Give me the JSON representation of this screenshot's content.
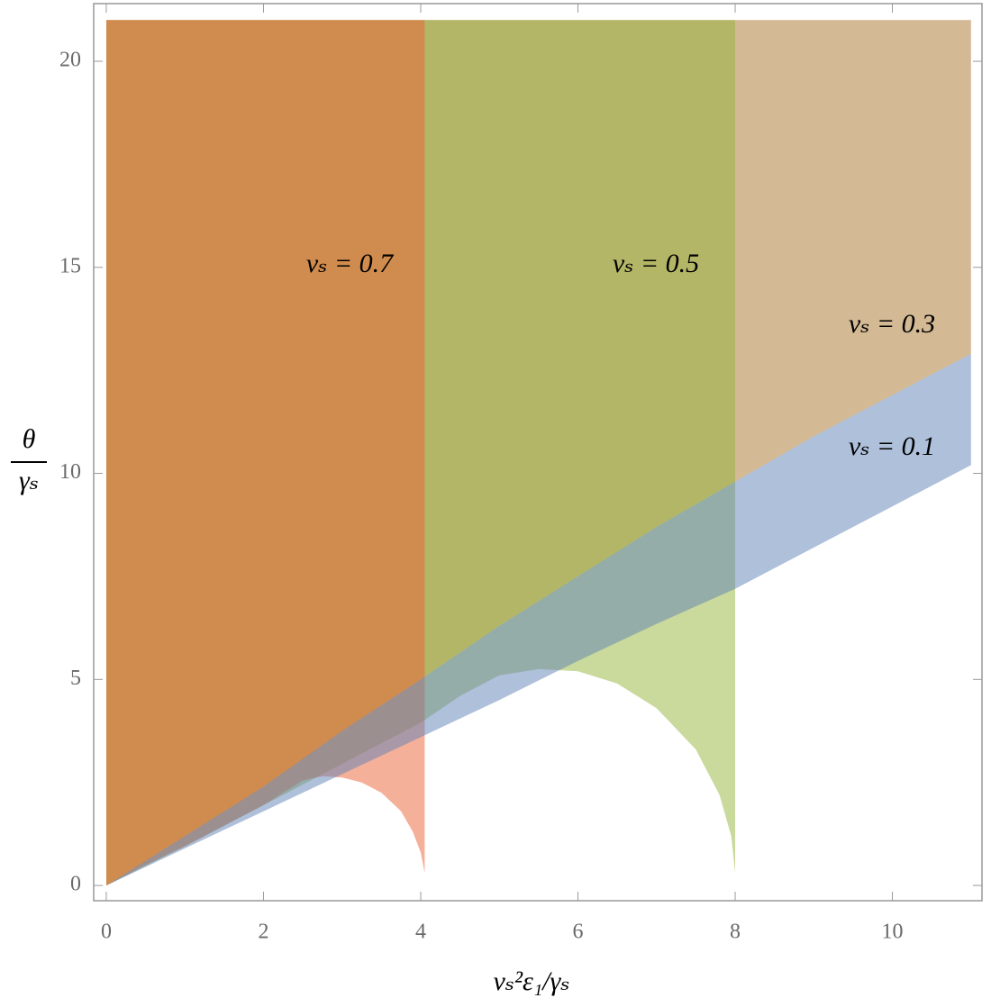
{
  "chart_data": {
    "type": "area",
    "xlabel": "vₛ²ε₁/γₛ",
    "ylabel": {
      "numerator": "θ",
      "denominator": "γₛ"
    },
    "xlim": [
      -0.16,
      11.14
    ],
    "ylim": [
      -0.37,
      21.4
    ],
    "xticks": [
      0,
      2,
      4,
      6,
      8,
      10
    ],
    "yticks": [
      0,
      5,
      10,
      15,
      20
    ],
    "series": [
      {
        "name": "vₛ = 0.3",
        "color": "#a8742a",
        "x": [
          0,
          1,
          2,
          3,
          4,
          5,
          6,
          7,
          8,
          9,
          10,
          11
        ],
        "lower": [
          0,
          1.2,
          2.4,
          3.75,
          5.0,
          6.3,
          7.5,
          8.7,
          9.8,
          10.9,
          11.9,
          12.9
        ],
        "upper": [
          21,
          21,
          21,
          21,
          21,
          21,
          21,
          21,
          21,
          21,
          21,
          21
        ]
      },
      {
        "name": "vₛ = 0.5",
        "color": "#96b33a",
        "x": [
          0,
          1,
          2,
          3,
          4,
          4.5,
          5,
          5.5,
          6,
          6.5,
          7,
          7.5,
          7.8,
          7.95,
          8
        ],
        "lower": [
          0,
          0.95,
          1.95,
          2.95,
          3.95,
          4.6,
          5.1,
          5.25,
          5.2,
          4.9,
          4.3,
          3.3,
          2.2,
          1.2,
          0.3
        ],
        "upper": [
          21,
          21,
          21,
          21,
          21,
          21,
          21,
          21,
          21,
          21,
          21,
          21,
          21,
          21,
          21
        ]
      },
      {
        "name": "vₛ = 0.7",
        "color": "#eb6235",
        "x": [
          0,
          0.5,
          1,
          1.5,
          2,
          2.5,
          2.75,
          3,
          3.25,
          3.5,
          3.75,
          3.9,
          4.0,
          4.05
        ],
        "lower": [
          0,
          0.5,
          0.95,
          1.45,
          1.95,
          2.55,
          2.65,
          2.62,
          2.5,
          2.25,
          1.8,
          1.3,
          0.8,
          0.3
        ],
        "upper": [
          21,
          21,
          21,
          21,
          21,
          21,
          21,
          21,
          21,
          21,
          21,
          21,
          21,
          21
        ]
      },
      {
        "name": "vₛ = 0.1",
        "color": "#5e81b5",
        "x": [
          0,
          1,
          2,
          3,
          4,
          5,
          6,
          7,
          8,
          9,
          10,
          11
        ],
        "lower": [
          0,
          0.9,
          1.8,
          2.7,
          3.6,
          4.5,
          5.45,
          6.35,
          7.2,
          8.2,
          9.2,
          10.2
        ],
        "upper": [
          0,
          1.2,
          2.4,
          3.75,
          5.0,
          6.3,
          7.5,
          8.7,
          9.8,
          10.9,
          11.9,
          12.9
        ]
      }
    ]
  }
}
